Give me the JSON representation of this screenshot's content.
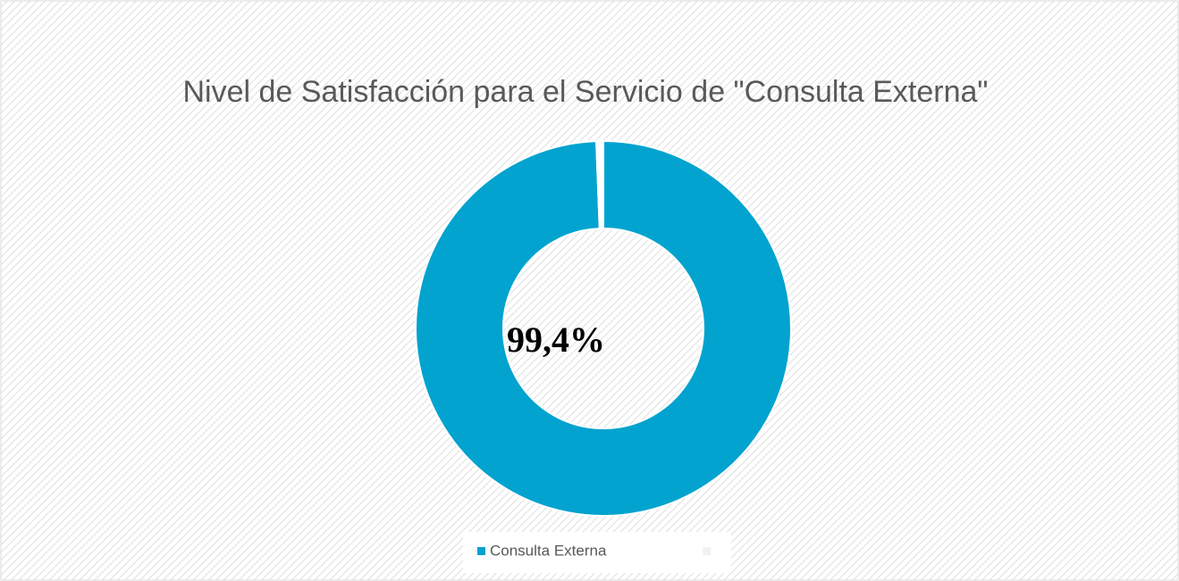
{
  "chart_data": {
    "type": "pie",
    "title": "Nivel de Satisfacción para el Servicio de \"Consulta Externa\"",
    "categories": [
      "Consulta Externa",
      null
    ],
    "values": [
      99.4,
      0.6
    ],
    "value_labels": [
      "99,4%",
      null
    ],
    "colors": [
      "#02a3cf",
      "#ffffff"
    ],
    "legend": "bottom"
  }
}
